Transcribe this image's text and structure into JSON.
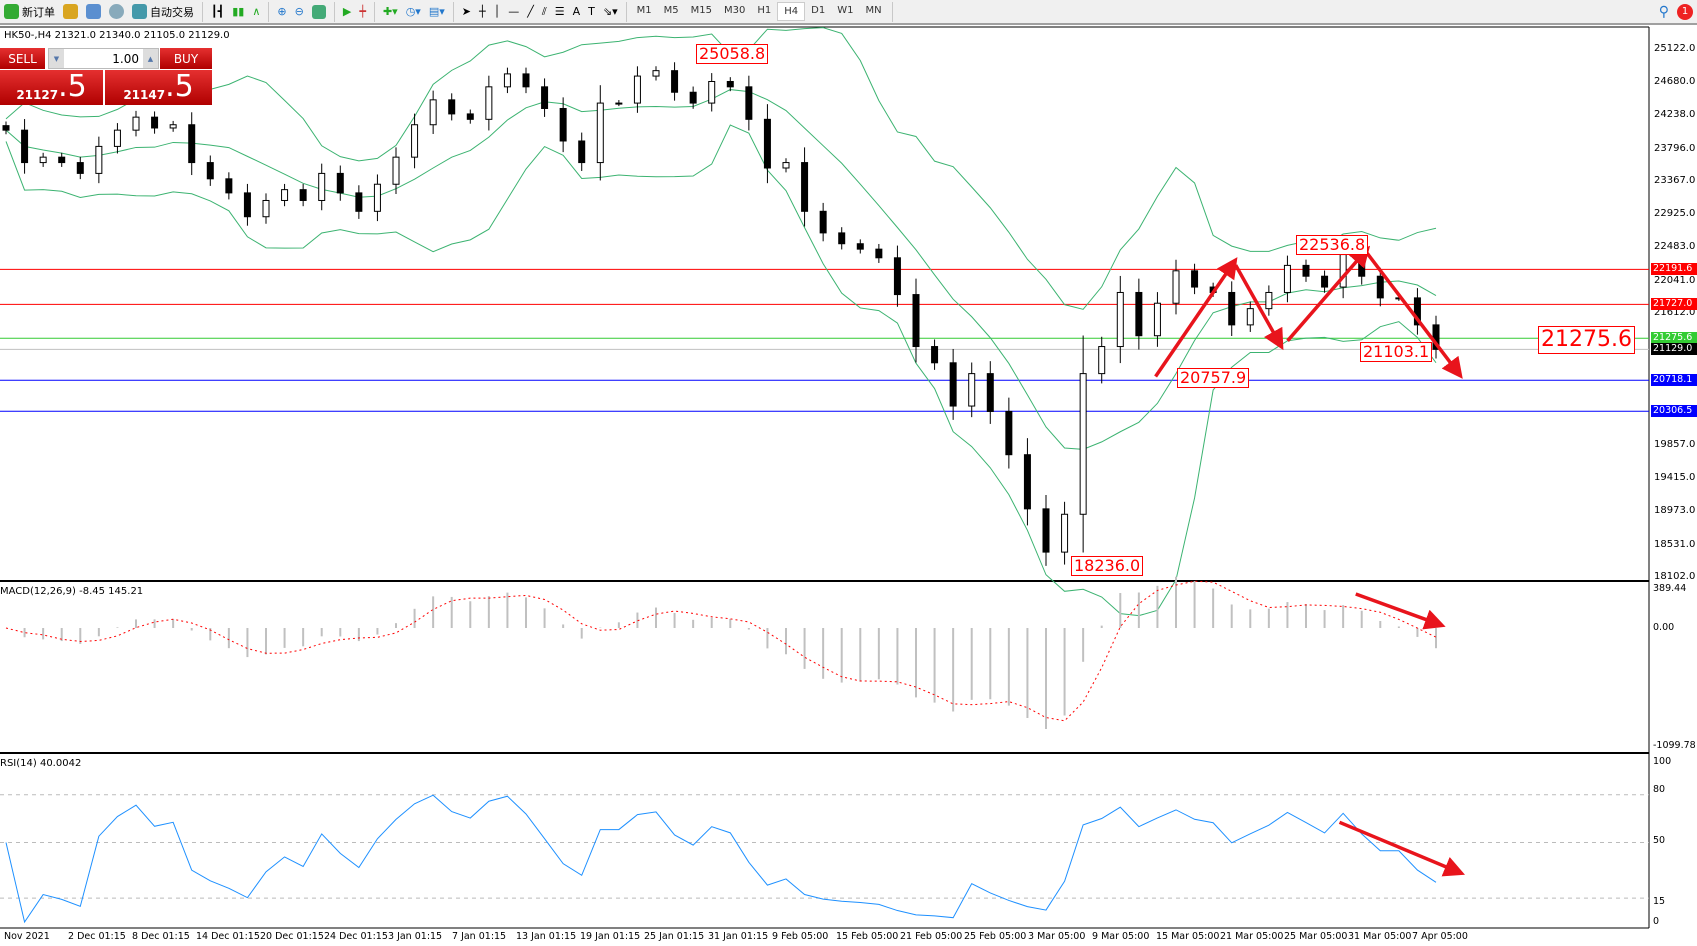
{
  "toolbar": {
    "new_order": "新订单",
    "auto_trading": "自动交易",
    "timeframes": [
      "M1",
      "M5",
      "M15",
      "M30",
      "H1",
      "H4",
      "D1",
      "W1",
      "MN"
    ],
    "active_timeframe": "H4",
    "notification_count": "1"
  },
  "symbol_info": "HK50-,H4  21321.0 21340.0 21105.0 21129.0",
  "trade_panel": {
    "sell_label": "SELL",
    "buy_label": "BUY",
    "lot": "1.00",
    "sell_price_main": "21127",
    "sell_price_big": ".5",
    "buy_price_main": "21147",
    "buy_price_big": ".5"
  },
  "price_axis": [
    "25122.0",
    "24680.0",
    "24238.0",
    "23796.0",
    "23367.0",
    "22925.0",
    "22483.0",
    "22041.0",
    "21612.0",
    "19857.0",
    "19415.0",
    "18973.0",
    "18531.0",
    "18102.0"
  ],
  "horizontal_lines": [
    {
      "price": 22191.6,
      "label": "22191.6",
      "color": "#ff0000"
    },
    {
      "price": 21727.0,
      "label": "21727.0",
      "color": "#ff0000"
    },
    {
      "price": 21275.6,
      "label": "21275.6",
      "color": "#33cc33"
    },
    {
      "price": 21129.0,
      "label": "21129.0",
      "color": "#000000",
      "line": "#c0c0c0"
    },
    {
      "price": 20718.1,
      "label": "20718.1",
      "color": "#0000ff"
    },
    {
      "price": 20306.5,
      "label": "20306.5",
      "color": "#0000ff"
    }
  ],
  "annotations": [
    "25058.8",
    "22536.8",
    "20757.9",
    "18236.0",
    "21103.1",
    "21275.6"
  ],
  "macd": {
    "label": "MACD(12,26,9) -8.45 145.21",
    "axis": [
      "389.44",
      "0.00",
      "-1099.78"
    ]
  },
  "rsi": {
    "label": "RSI(14) 40.0042",
    "axis": [
      "100",
      "80",
      "50",
      "15",
      "0"
    ]
  },
  "time_axis": [
    "Nov 2021",
    "2 Dec 01:15",
    "8 Dec 01:15",
    "14 Dec 01:15",
    "20 Dec 01:15",
    "24 Dec 01:15",
    "3 Jan 01:15",
    "7 Jan 01:15",
    "13 Jan 01:15",
    "19 Jan 01:15",
    "25 Jan 01:15",
    "31 Jan 01:15",
    "9 Feb 05:00",
    "15 Feb 05:00",
    "21 Feb 05:00",
    "25 Feb 05:00",
    "3 Mar 05:00",
    "9 Mar 05:00",
    "15 Mar 05:00",
    "21 Mar 05:00",
    "25 Mar 05:00",
    "31 Mar 05:00",
    "7 Apr 05:00"
  ],
  "chart_data": {
    "type": "candlestick",
    "symbol": "HK50-",
    "timeframe": "H4",
    "ylim": [
      18102,
      25122
    ],
    "closes": [
      24043,
      23612,
      23684,
      23612,
      23468,
      23827,
      24043,
      24216,
      24072,
      24115,
      23612,
      23396,
      23209,
      22892,
      23108,
      23252,
      23108,
      23468,
      23209,
      22964,
      23324,
      23684,
      24115,
      24446,
      24259,
      24187,
      24619,
      24791,
      24619,
      24331,
      23899,
      23612,
      24403,
      24403,
      24762,
      24834,
      24547,
      24403,
      24690,
      24619,
      24187,
      23540,
      23612,
      22964,
      22677,
      22533,
      22461,
      22346,
      21857,
      21166,
      20950,
      20375,
      20806,
      20303,
      19728,
      19008,
      18433,
      18936,
      20806,
      21166,
      21885,
      21310,
      21742,
      22173,
      21957,
      21885,
      21454,
      21670,
      21885,
      22245,
      22101,
      21957,
      22389,
      22101,
      21813,
      21813,
      21454,
      21129
    ]
  },
  "colors": {
    "bollinger": "#3cb371",
    "macd_hist": "#c0c0c0",
    "macd_signal": "#ff0000",
    "rsi": "#1e90ff",
    "arrow": "#e8141c"
  }
}
